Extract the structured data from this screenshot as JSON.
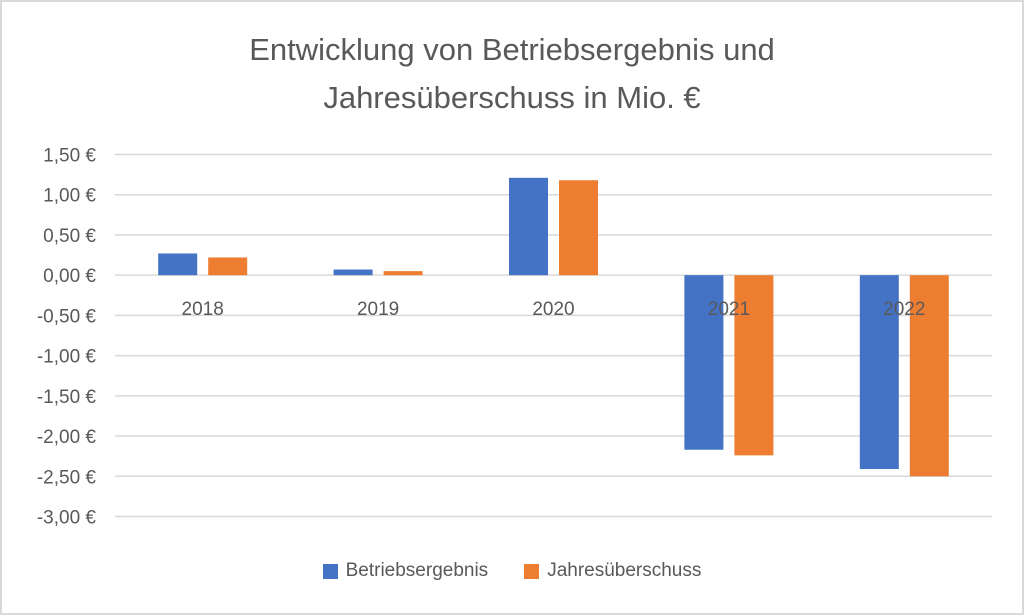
{
  "chart_data": {
    "type": "bar",
    "title": "Entwicklung von Betriebsergebnis und Jahresüberschuss in Mio. €",
    "title_lines": [
      "Entwicklung von Betriebsergebnis und",
      "Jahresüberschuss in Mio. €"
    ],
    "xlabel": "",
    "ylabel": "",
    "categories": [
      "2018",
      "2019",
      "2020",
      "2021",
      "2022"
    ],
    "series": [
      {
        "name": "Betriebsergebnis",
        "color": "#4472c4",
        "values": [
          0.27,
          0.07,
          1.21,
          -2.17,
          -2.41
        ]
      },
      {
        "name": "Jahresüberschuss",
        "color": "#ed7d31",
        "values": [
          0.22,
          0.05,
          1.18,
          -2.24,
          -2.5
        ]
      }
    ],
    "ylim": [
      -3.0,
      1.5
    ],
    "yticks": [
      1.5,
      1.0,
      0.5,
      0.0,
      -0.5,
      -1.0,
      -1.5,
      -2.0,
      -2.5,
      -3.0
    ],
    "ytick_labels": [
      "1,50 €",
      "1,00 €",
      "0,50 €",
      "0,00 €",
      "-0,50 €",
      "-1,00 €",
      "-1,50 €",
      "-2,00 €",
      "-2,50 €",
      "-3,00 €"
    ],
    "grid": true,
    "legend_position": "bottom",
    "category_labels_position": "below-zero-line"
  }
}
